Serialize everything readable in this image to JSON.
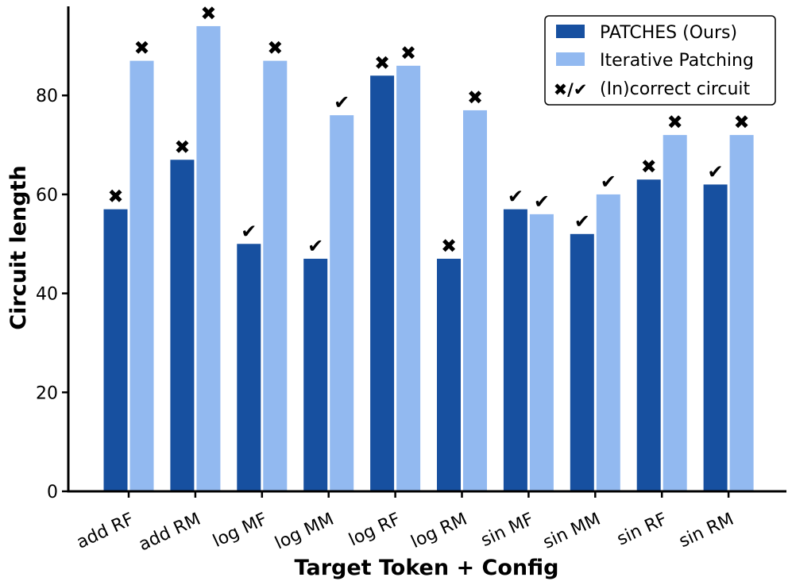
{
  "chart_data": {
    "type": "bar",
    "title": "",
    "xlabel": "Target Token + Config",
    "ylabel": "Circuit length",
    "ylim": [
      0,
      98
    ],
    "yticks": [
      0,
      20,
      40,
      60,
      80
    ],
    "grid": false,
    "legend_position": "top-right",
    "categories": [
      "add RF",
      "add RM",
      "log MF",
      "log MM",
      "log RF",
      "log RM",
      "sin MF",
      "sin MM",
      "sin RF",
      "sin RM"
    ],
    "series": [
      {
        "name": "PATCHES (Ours)",
        "color": "#1750a0",
        "values": [
          57,
          67,
          50,
          47,
          84,
          47,
          57,
          52,
          63,
          62
        ],
        "correct": [
          false,
          false,
          true,
          true,
          false,
          false,
          true,
          true,
          false,
          true
        ]
      },
      {
        "name": "Iterative Patching",
        "color": "#92b9f0",
        "values": [
          87,
          94,
          87,
          76,
          86,
          77,
          56,
          60,
          72,
          72
        ],
        "correct": [
          false,
          false,
          false,
          true,
          false,
          false,
          true,
          true,
          false,
          false
        ]
      }
    ],
    "legend_marker_entry": "(In)correct circuit",
    "legend_marker_symbol": "✖/✔",
    "marker_symbols": {
      "incorrect": "✖",
      "correct": "✔"
    }
  }
}
